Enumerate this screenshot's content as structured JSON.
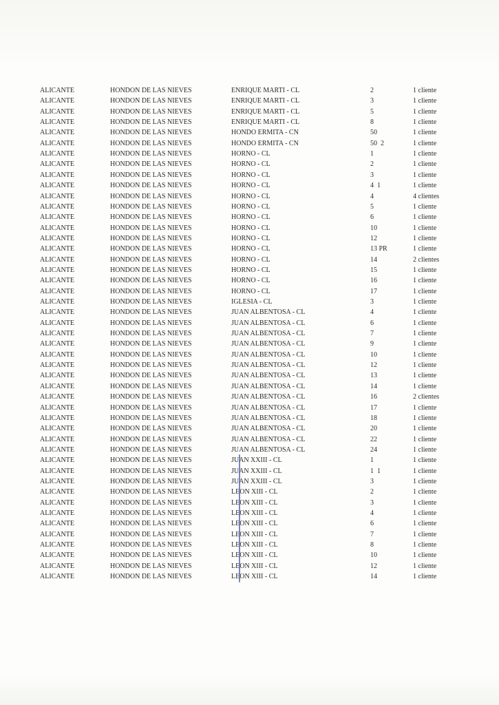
{
  "rows": [
    [
      "ALICANTE",
      "HONDON DE LAS NIEVES",
      "ENRIQUE MARTI - CL",
      "2",
      "1 cliente"
    ],
    [
      "ALICANTE",
      "HONDON DE LAS NIEVES",
      "ENRIQUE MARTI - CL",
      "3",
      "1 cliente"
    ],
    [
      "ALICANTE",
      "HONDON DE LAS NIEVES",
      "ENRIQUE MARTI - CL",
      "5",
      "1 cliente"
    ],
    [
      "ALICANTE",
      "HONDON DE LAS NIEVES",
      "ENRIQUE MARTI - CL",
      "8",
      "1 cliente"
    ],
    [
      "ALICANTE",
      "HONDON DE LAS NIEVES",
      "HONDO ERMITA - CN",
      "50",
      "1 cliente"
    ],
    [
      "ALICANTE",
      "HONDON DE LAS NIEVES",
      "HONDO ERMITA - CN",
      "50  2",
      "1 cliente"
    ],
    [
      "ALICANTE",
      "HONDON DE LAS NIEVES",
      "HORNO - CL",
      "1",
      "1 cliente"
    ],
    [
      "ALICANTE",
      "HONDON DE LAS NIEVES",
      "HORNO - CL",
      "2",
      "1 cliente"
    ],
    [
      "ALICANTE",
      "HONDON DE LAS NIEVES",
      "HORNO - CL",
      "3",
      "1 cliente"
    ],
    [
      "ALICANTE",
      "HONDON DE LAS NIEVES",
      "HORNO - CL",
      "4  1",
      "1 cliente"
    ],
    [
      "ALICANTE",
      "HONDON DE LAS NIEVES",
      "HORNO - CL",
      "4",
      "4 clientes"
    ],
    [
      "ALICANTE",
      "HONDON DE LAS NIEVES",
      "HORNO - CL",
      "5",
      "1 cliente"
    ],
    [
      "ALICANTE",
      "HONDON DE LAS NIEVES",
      "HORNO - CL",
      "6",
      "1 cliente"
    ],
    [
      "ALICANTE",
      "HONDON DE LAS NIEVES",
      "HORNO - CL",
      "10",
      "1 cliente"
    ],
    [
      "ALICANTE",
      "HONDON DE LAS NIEVES",
      "HORNO - CL",
      "12",
      "1 cliente"
    ],
    [
      "ALICANTE",
      "HONDON DE LAS NIEVES",
      "HORNO - CL",
      "13 PR",
      "1 cliente"
    ],
    [
      "ALICANTE",
      "HONDON DE LAS NIEVES",
      "HORNO - CL",
      "14",
      "2 clientes"
    ],
    [
      "ALICANTE",
      "HONDON DE LAS NIEVES",
      "HORNO - CL",
      "15",
      "1 cliente"
    ],
    [
      "ALICANTE",
      "HONDON DE LAS NIEVES",
      "HORNO - CL",
      "16",
      "1 cliente"
    ],
    [
      "ALICANTE",
      "HONDON DE LAS NIEVES",
      "HORNO - CL",
      "17",
      "1 cliente"
    ],
    [
      "ALICANTE",
      "HONDON DE LAS NIEVES",
      "IGLESIA - CL",
      "3",
      "1 cliente"
    ],
    [
      "ALICANTE",
      "HONDON DE LAS NIEVES",
      "JUAN ALBENTOSA - CL",
      "4",
      "1 cliente"
    ],
    [
      "ALICANTE",
      "HONDON DE LAS NIEVES",
      "JUAN ALBENTOSA - CL",
      "6",
      "1 cliente"
    ],
    [
      "ALICANTE",
      "HONDON DE LAS NIEVES",
      "JUAN ALBENTOSA - CL",
      "7",
      "1 cliente"
    ],
    [
      "ALICANTE",
      "HONDON DE LAS NIEVES",
      "JUAN ALBENTOSA - CL",
      "9",
      "1 cliente"
    ],
    [
      "ALICANTE",
      "HONDON DE LAS NIEVES",
      "JUAN ALBENTOSA - CL",
      "10",
      "1 cliente"
    ],
    [
      "ALICANTE",
      "HONDON DE LAS NIEVES",
      "JUAN ALBENTOSA - CL",
      "12",
      "1 cliente"
    ],
    [
      "ALICANTE",
      "HONDON DE LAS NIEVES",
      "JUAN ALBENTOSA - CL",
      "13",
      "1 cliente"
    ],
    [
      "ALICANTE",
      "HONDON DE LAS NIEVES",
      "JUAN ALBENTOSA - CL",
      "14",
      "1 cliente"
    ],
    [
      "ALICANTE",
      "HONDON DE LAS NIEVES",
      "JUAN ALBENTOSA - CL",
      "16",
      "2 clientes"
    ],
    [
      "ALICANTE",
      "HONDON DE LAS NIEVES",
      "JUAN ALBENTOSA - CL",
      "17",
      "1 cliente"
    ],
    [
      "ALICANTE",
      "HONDON DE LAS NIEVES",
      "JUAN ALBENTOSA - CL",
      "18",
      "1 cliente"
    ],
    [
      "ALICANTE",
      "HONDON DE LAS NIEVES",
      "JUAN ALBENTOSA - CL",
      "20",
      "1 cliente"
    ],
    [
      "ALICANTE",
      "HONDON DE LAS NIEVES",
      "JUAN ALBENTOSA - CL",
      "22",
      "1 cliente"
    ],
    [
      "ALICANTE",
      "HONDON DE LAS NIEVES",
      "JUAN ALBENTOSA - CL",
      "24",
      "1 cliente"
    ],
    [
      "ALICANTE",
      "HONDON DE LAS NIEVES",
      "JUAN XXIII - CL",
      "1",
      "1 cliente"
    ],
    [
      "ALICANTE",
      "HONDON DE LAS NIEVES",
      "JUAN XXIII - CL",
      "1  1",
      "1 cliente"
    ],
    [
      "ALICANTE",
      "HONDON DE LAS NIEVES",
      "JUAN XXIII - CL",
      "3",
      "1 cliente"
    ],
    [
      "ALICANTE",
      "HONDON DE LAS NIEVES",
      "LEON XIII - CL",
      "2",
      "1 cliente"
    ],
    [
      "ALICANTE",
      "HONDON DE LAS NIEVES",
      "LEON XIII - CL",
      "3",
      "1 cliente"
    ],
    [
      "ALICANTE",
      "HONDON DE LAS NIEVES",
      "LEON XIII - CL",
      "4",
      "1 cliente"
    ],
    [
      "ALICANTE",
      "HONDON DE LAS NIEVES",
      "LEON XIII - CL",
      "6",
      "1 cliente"
    ],
    [
      "ALICANTE",
      "HONDON DE LAS NIEVES",
      "LEON XIII - CL",
      "7",
      "1 cliente"
    ],
    [
      "ALICANTE",
      "HONDON DE LAS NIEVES",
      "LEON XIII - CL",
      "8",
      "1 cliente"
    ],
    [
      "ALICANTE",
      "HONDON DE LAS NIEVES",
      "LEON XIII - CL",
      "10",
      "1 cliente"
    ],
    [
      "ALICANTE",
      "HONDON DE LAS NIEVES",
      "LEON XIII - CL",
      "12",
      "1 cliente"
    ],
    [
      "ALICANTE",
      "HONDON DE LAS NIEVES",
      "LEON XIII - CL",
      "14",
      "1 cliente"
    ]
  ]
}
